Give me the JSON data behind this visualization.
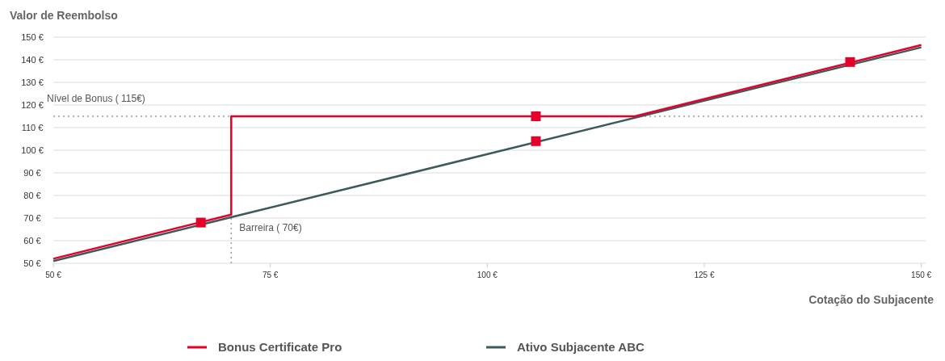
{
  "chart_data": {
    "type": "line",
    "ylabel": "Valor de Reembolso",
    "xlabel": "Cotação do Subjacente",
    "xlim": [
      50,
      150.5
    ],
    "ylim": [
      50,
      150
    ],
    "xticks": [
      {
        "value": 50,
        "label": "50 €"
      },
      {
        "value": 75,
        "label": "75 €"
      },
      {
        "value": 100,
        "label": "100 €"
      },
      {
        "value": 125,
        "label": "125 €"
      },
      {
        "value": 150,
        "label": "150 €"
      }
    ],
    "yticks": [
      {
        "value": 50,
        "label": "50 €"
      },
      {
        "value": 60,
        "label": "60 €"
      },
      {
        "value": 70,
        "label": "70 €"
      },
      {
        "value": 80,
        "label": "80 €"
      },
      {
        "value": 90,
        "label": "90 €"
      },
      {
        "value": 100,
        "label": "100 €"
      },
      {
        "value": 110,
        "label": "110 €"
      },
      {
        "value": 120,
        "label": "120 €"
      },
      {
        "value": 130,
        "label": "130 €"
      },
      {
        "value": 140,
        "label": "140 €"
      },
      {
        "value": 150,
        "label": "150 €"
      }
    ],
    "grid": "y",
    "legend": "bottom",
    "series": [
      {
        "name": "Ativo Subjacente ABC",
        "color": "#3d5a5a",
        "x": [
          50,
          150
        ],
        "values": [
          51,
          145.5
        ]
      },
      {
        "name": "Bonus Certificate Pro",
        "color": "#e4002b",
        "x": [
          50,
          70.5,
          70.5,
          117,
          150
        ],
        "values": [
          52,
          71.5,
          115,
          115,
          146.5
        ]
      },
      {
        "type": "scatter",
        "color": "#e4002b",
        "marker": "square",
        "x": [
          67,
          105.6,
          105.6,
          141.8
        ],
        "values": [
          68,
          115,
          104,
          139
        ]
      }
    ],
    "ref_lines": [
      {
        "axis": "y",
        "value": 115,
        "label": "Nível de Bonus ( 115€)",
        "color": "#999999",
        "line_style": "dotted"
      },
      {
        "axis": "x",
        "value": 70.5,
        "label": "Barreira ( 70€)",
        "color": "#999999",
        "line_style": "dotted"
      }
    ]
  }
}
